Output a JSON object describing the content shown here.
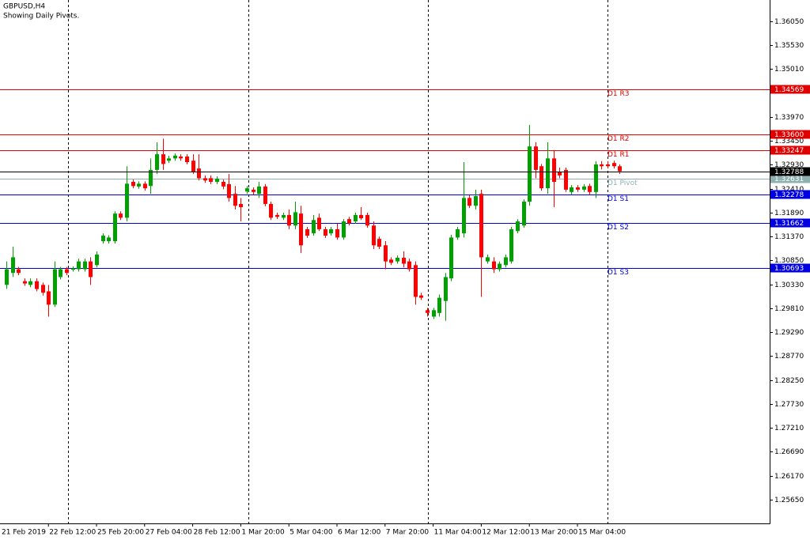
{
  "chart_data": {
    "type": "candlestick",
    "title": "GBPUSD,H4",
    "subtitle": "Showing Daily Pivots.",
    "up_color": "#00a000",
    "down_color": "#ff0000",
    "categories": [
      "21 Feb 2019",
      null,
      null,
      null,
      null,
      null,
      null,
      "22 Feb 12:00",
      null,
      null,
      null,
      null,
      null,
      null,
      null,
      "25 Feb 20:00",
      null,
      null,
      null,
      null,
      null,
      null,
      null,
      "27 Feb 04:00",
      null,
      null,
      null,
      null,
      null,
      null,
      null,
      "28 Feb 12:00",
      null,
      null,
      null,
      null,
      null,
      null,
      null,
      "1 Mar 20:00",
      null,
      null,
      null,
      null,
      null,
      null,
      null,
      "5 Mar 04:00",
      null,
      null,
      null,
      null,
      null,
      null,
      null,
      "6 Mar 12:00",
      null,
      null,
      null,
      null,
      null,
      null,
      null,
      "7 Mar 20:00",
      null,
      null,
      null,
      null,
      null,
      null,
      null,
      "11 Mar 04:00",
      null,
      null,
      null,
      null,
      null,
      null,
      null,
      "12 Mar 12:00",
      null,
      null,
      null,
      null,
      null,
      null,
      null,
      "13 Mar 20:00",
      null,
      null,
      null,
      null,
      null,
      null,
      null,
      "15 Mar 04:00",
      null,
      null,
      null,
      null,
      null,
      null,
      null
    ],
    "open": [
      1.3032,
      1.3058,
      1.3066,
      1.304,
      1.3032,
      1.304,
      1.3032,
      1.3018,
      1.2989,
      1.3049,
      1.3066,
      1.3065,
      1.3066,
      1.3066,
      1.3083,
      1.3075,
      1.3127,
      1.3127,
      1.3127,
      1.3187,
      1.3178,
      1.3256,
      1.3246,
      1.3252,
      1.3247,
      1.3282,
      1.3316,
      1.3302,
      1.3307,
      1.3311,
      1.3311,
      1.3302,
      1.3285,
      1.3264,
      1.3264,
      1.3256,
      1.3256,
      1.3251,
      1.323,
      1.3208,
      1.3235,
      1.3239,
      1.323,
      1.3246,
      1.3208,
      1.3184,
      1.3178,
      1.3184,
      1.3161,
      1.3187,
      1.3153,
      1.3144,
      1.3178,
      1.3153,
      1.3144,
      1.3153,
      1.3135,
      1.3175,
      1.317,
      1.3184,
      1.3184,
      1.3161,
      1.3132,
      1.3118,
      1.3087,
      1.3083,
      1.3091,
      1.3083,
      1.3075,
      1.3009,
      1.2977,
      1.2963,
      1.2971,
      1.2997,
      1.3046,
      1.3135,
      1.3144,
      1.3221,
      1.3204,
      1.323,
      1.3083,
      1.3083,
      1.3066,
      1.3075,
      1.3083,
      1.3149,
      1.3161,
      1.3213,
      1.3333,
      1.329,
      1.3242,
      1.3307,
      1.3277,
      1.3282,
      1.3234,
      1.3244,
      1.3239,
      1.3247,
      1.3234,
      1.3294,
      1.3294,
      1.3297,
      1.329
    ],
    "high": [
      1.3083,
      1.3115,
      1.3071,
      1.3046,
      1.3046,
      1.3046,
      1.3037,
      1.3032,
      1.3083,
      1.3071,
      1.3071,
      1.3072,
      1.3089,
      1.3089,
      1.3092,
      1.3105,
      1.3144,
      1.314,
      1.3192,
      1.3192,
      1.329,
      1.3261,
      1.3257,
      1.3257,
      1.3307,
      1.3342,
      1.335,
      1.3313,
      1.3318,
      1.3316,
      1.3316,
      1.3316,
      1.3316,
      1.327,
      1.327,
      1.3268,
      1.3261,
      1.3273,
      1.3247,
      1.3221,
      1.3247,
      1.3244,
      1.3256,
      1.3251,
      1.3213,
      1.3189,
      1.3189,
      1.3196,
      1.3213,
      1.3204,
      1.3158,
      1.3184,
      1.3187,
      1.3158,
      1.3158,
      1.3165,
      1.3175,
      1.318,
      1.3189,
      1.3201,
      1.3189,
      1.317,
      1.3137,
      1.3127,
      1.3092,
      1.3096,
      1.3105,
      1.3089,
      1.3083,
      1.3015,
      1.2982,
      1.2982,
      1.3011,
      1.3058,
      1.3141,
      1.3158,
      1.3299,
      1.3227,
      1.3239,
      1.3239,
      1.3098,
      1.3092,
      1.3083,
      1.3098,
      1.3158,
      1.3175,
      1.3218,
      1.338,
      1.3342,
      1.3295,
      1.3342,
      1.3325,
      1.3287,
      1.3287,
      1.3249,
      1.3249,
      1.3251,
      1.3252,
      1.3301,
      1.3301,
      1.3301,
      1.3302,
      1.3294
    ],
    "low": [
      1.3023,
      1.3049,
      1.3053,
      1.303,
      1.3027,
      1.3018,
      1.3009,
      1.2963,
      1.2984,
      1.3044,
      1.3053,
      1.3061,
      1.3061,
      1.3061,
      1.3032,
      1.307,
      1.3122,
      1.3122,
      1.3122,
      1.3173,
      1.317,
      1.3242,
      1.3241,
      1.3237,
      1.323,
      1.3273,
      1.3282,
      1.3297,
      1.3302,
      1.3302,
      1.3294,
      1.3273,
      1.3259,
      1.3254,
      1.3251,
      1.3251,
      1.324,
      1.3213,
      1.3196,
      1.317,
      1.323,
      1.3228,
      1.3221,
      1.3203,
      1.3173,
      1.3175,
      1.3173,
      1.3153,
      1.3153,
      1.3101,
      1.3134,
      1.3139,
      1.3149,
      1.3134,
      1.3139,
      1.313,
      1.313,
      1.3161,
      1.3165,
      1.3173,
      1.3156,
      1.311,
      1.311,
      1.3066,
      1.3075,
      1.3078,
      1.307,
      1.3061,
      1.2989,
      1.2999,
      1.2963,
      1.2958,
      1.2963,
      1.2954,
      1.304,
      1.313,
      1.3135,
      1.3199,
      1.3196,
      1.3006,
      1.3078,
      1.3058,
      1.3061,
      1.307,
      1.3078,
      1.3144,
      1.3156,
      1.3204,
      1.3264,
      1.3237,
      1.323,
      1.3201,
      1.3264,
      1.3234,
      1.3228,
      1.3234,
      1.3234,
      1.3228,
      1.3221,
      1.3283,
      1.3285,
      1.3285,
      1.3273
    ],
    "close": [
      1.3066,
      1.3092,
      1.3058,
      1.3035,
      1.304,
      1.3023,
      1.3015,
      1.2989,
      1.3066,
      1.3066,
      1.3058,
      1.3068,
      1.3083,
      1.3083,
      1.3049,
      1.3098,
      1.3139,
      1.3135,
      1.3187,
      1.3178,
      1.3252,
      1.3247,
      1.3252,
      1.3242,
      1.3282,
      1.3316,
      1.3295,
      1.3307,
      1.3313,
      1.3307,
      1.3299,
      1.3278,
      1.3264,
      1.3259,
      1.3256,
      1.3263,
      1.3246,
      1.3221,
      1.3204,
      1.3201,
      1.3242,
      1.3234,
      1.3246,
      1.3208,
      1.3178,
      1.318,
      1.3184,
      1.3161,
      1.319,
      1.3118,
      1.3139,
      1.3173,
      1.3153,
      1.3139,
      1.3153,
      1.3135,
      1.317,
      1.3166,
      1.3184,
      1.3177,
      1.3161,
      1.3118,
      1.3115,
      1.3083,
      1.308,
      1.3091,
      1.3078,
      1.3066,
      1.3006,
      1.3004,
      1.2971,
      1.2977,
      1.3004,
      1.3049,
      1.3135,
      1.3153,
      1.3221,
      1.3204,
      1.3225,
      1.3092,
      1.3092,
      1.3066,
      1.3078,
      1.3092,
      1.3153,
      1.317,
      1.3213,
      1.3333,
      1.3282,
      1.3242,
      1.3307,
      1.3256,
      1.327,
      1.3239,
      1.3244,
      1.3239,
      1.3246,
      1.3234,
      1.3294,
      1.329,
      1.329,
      1.329,
      1.3279
    ],
    "levels": [
      {
        "name": "D1 R3",
        "value": 1.34569,
        "label": "1.34569",
        "color": "#e00000"
      },
      {
        "name": "D1 R2",
        "value": 1.336,
        "label": "1.33600",
        "color": "#e00000"
      },
      {
        "name": "D1 R1",
        "value": 1.33247,
        "label": "1.33247",
        "color": "#e00000"
      },
      {
        "name": "D1 Pivot",
        "value": 1.32631,
        "label": "1.32631",
        "color": "#8fb0b0"
      },
      {
        "name": "D1 S1",
        "value": 1.32278,
        "label": "1.32278",
        "color": "#0000e0"
      },
      {
        "name": "D1 S2",
        "value": 1.31662,
        "label": "1.31662",
        "color": "#0000e0"
      },
      {
        "name": "D1 S3",
        "value": 1.30693,
        "label": "1.30693",
        "color": "#0000e0"
      }
    ],
    "current_price": {
      "value": 1.32788,
      "label": "1.32788",
      "color": "#000000"
    },
    "ylim": [
      1.25134,
      1.36514
    ],
    "yticks": [
      {
        "value": 1.3605,
        "label": "1.36050"
      },
      {
        "value": 1.3553,
        "label": "1.35530"
      },
      {
        "value": 1.3501,
        "label": "1.35010"
      },
      {
        "value": 1.3397,
        "label": "1.33970"
      },
      {
        "value": 1.3345,
        "label": "1.33450"
      },
      {
        "value": 1.3293,
        "label": "1.32930"
      },
      {
        "value": 1.3241,
        "label": "1.32410"
      },
      {
        "value": 1.3189,
        "label": "1.31890"
      },
      {
        "value": 1.3137,
        "label": "1.31370"
      },
      {
        "value": 1.3085,
        "label": "1.30850"
      },
      {
        "value": 1.3033,
        "label": "1.30330"
      },
      {
        "value": 1.2981,
        "label": "1.29810"
      },
      {
        "value": 1.2929,
        "label": "1.29290"
      },
      {
        "value": 1.2877,
        "label": "1.28770"
      },
      {
        "value": 1.2825,
        "label": "1.28250"
      },
      {
        "value": 1.2773,
        "label": "1.27730"
      },
      {
        "value": 1.2721,
        "label": "1.27210"
      },
      {
        "value": 1.2669,
        "label": "1.26690"
      },
      {
        "value": 1.2617,
        "label": "1.26170"
      },
      {
        "value": 1.2565,
        "label": "1.25650"
      }
    ]
  }
}
